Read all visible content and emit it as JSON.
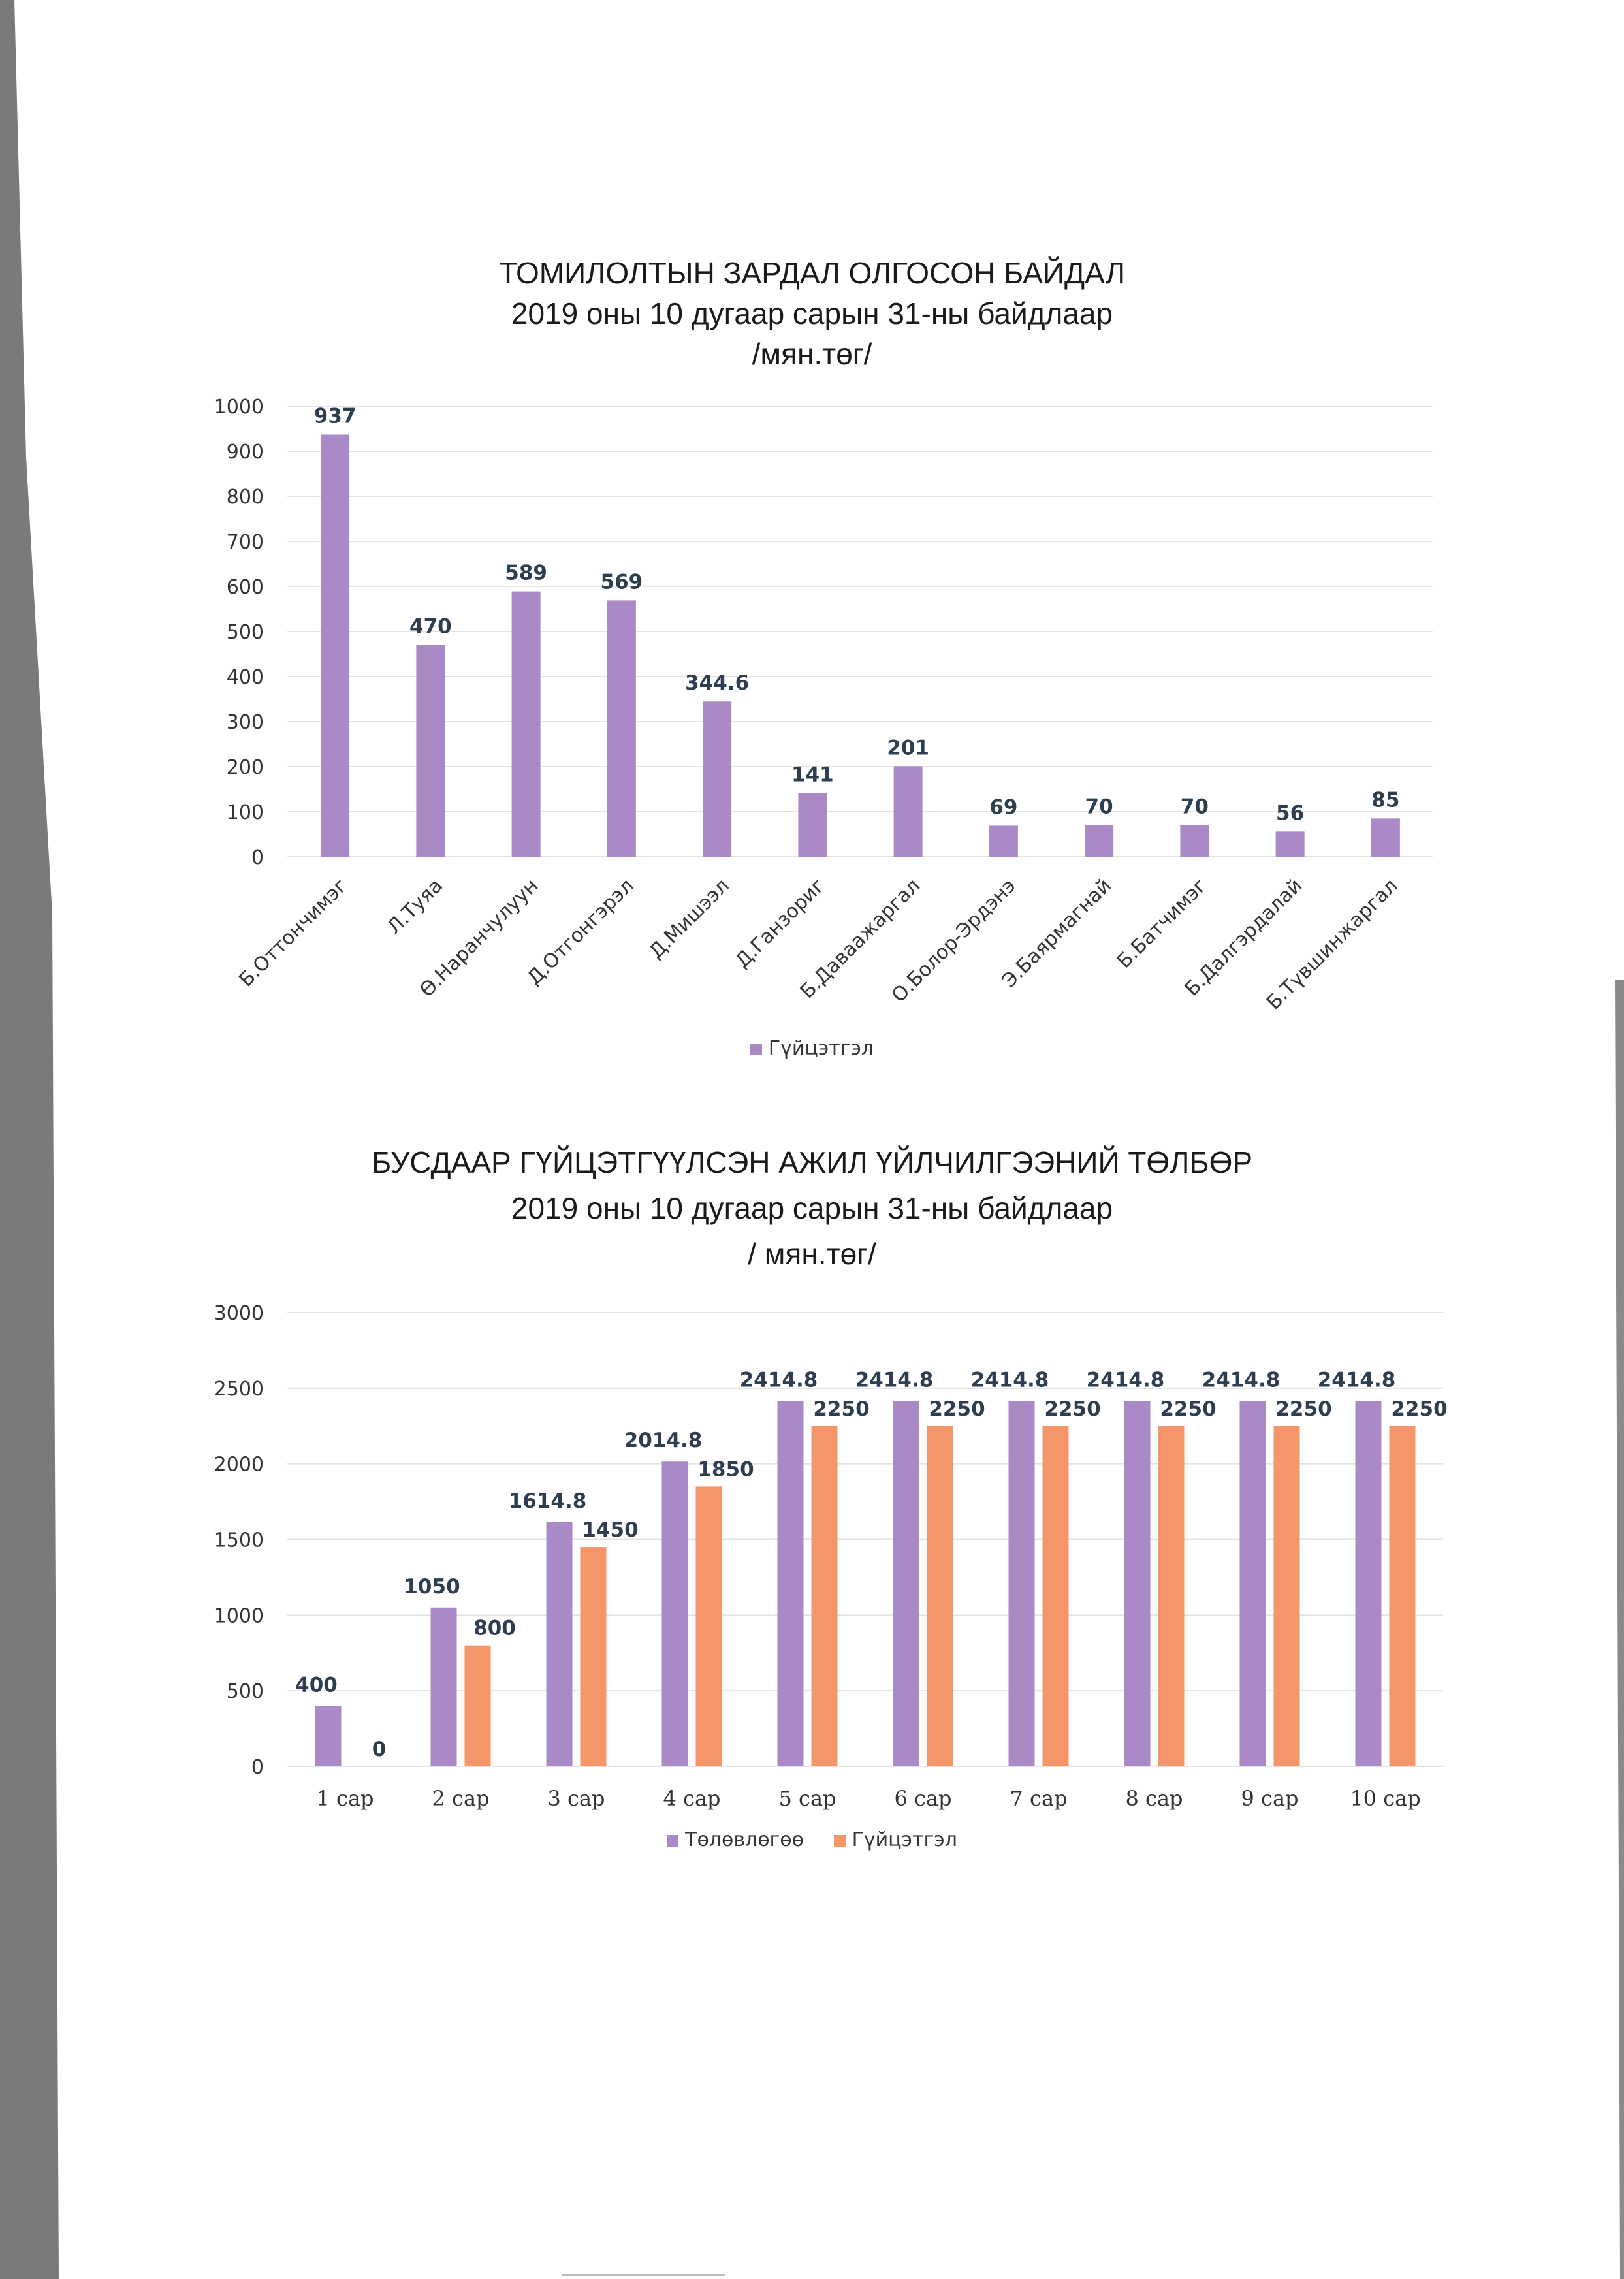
{
  "chart_data": [
    {
      "type": "bar",
      "title": "ТОМИЛОЛТЫН ЗАРДАЛ ОЛГОСОН БАЙДАЛ",
      "subtitle": "2019 оны 10 дугаар сарын 31-ны байдлаар",
      "unit": "/мян.төг/",
      "categories": [
        "Б.Оттончимэг",
        "Л.Туяа",
        "Ө.Наранчулуун",
        "Д.Отгонгэрэл",
        "Д.Мишээл",
        "Д.Ганзориг",
        "Б.Даваажаргал",
        "О.Болор-Эрдэнэ",
        "Э.Баярмагнай",
        "Б.Батчимэг",
        "Б.Далгэрдалай",
        "Б.Түвшинжаргал"
      ],
      "series": [
        {
          "name": "Гүйцэтгэл",
          "values": [
            937,
            470,
            589,
            569,
            344.6,
            141,
            201,
            69,
            70,
            70,
            56,
            85
          ],
          "labels": [
            "937",
            "470",
            "589",
            "569",
            "344.6",
            "141",
            "201",
            "69",
            "70",
            "70",
            "56",
            "85"
          ],
          "color": "#a98ac7"
        }
      ],
      "ylim": [
        0,
        1000
      ],
      "yticks": [
        0,
        100,
        200,
        300,
        400,
        500,
        600,
        700,
        800,
        900,
        1000
      ],
      "grid": true,
      "legend": "bottom"
    },
    {
      "type": "bar",
      "title": "БУСДААР ГҮЙЦЭТГҮҮЛСЭН АЖИЛ ҮЙЛЧИЛГЭЭНИЙ ТӨЛБӨР",
      "subtitle": "2019 оны 10 дугаар сарын 31-ны байдлаар",
      "unit": "/ мян.төг/",
      "categories": [
        "1 сар",
        "2 сар",
        "3 сар",
        "4 сар",
        "5 сар",
        "6 сар",
        "7 сар",
        "8 сар",
        "9 сар",
        "10 сар"
      ],
      "series": [
        {
          "name": "Төлөвлөгөө",
          "values": [
            400,
            1050,
            1614.8,
            2014.8,
            2414.8,
            2414.8,
            2414.8,
            2414.8,
            2414.8,
            2414.8
          ],
          "labels": [
            "400",
            "1050",
            "1614.8",
            "2014.8",
            "2414.8",
            "2414.8",
            "2414.8",
            "2414.8",
            "2414.8",
            "2414.8"
          ],
          "color": "#a98ac7"
        },
        {
          "name": "Гүйцэтгэл",
          "values": [
            0,
            800,
            1450,
            1850,
            2250,
            2250,
            2250,
            2250,
            2250,
            2250
          ],
          "labels": [
            "0",
            "800",
            "1450",
            "1850",
            "2250",
            "2250",
            "2250",
            "2250",
            "2250",
            "2250"
          ],
          "color": "#f5956a"
        }
      ],
      "ylim": [
        0,
        3000
      ],
      "yticks": [
        0,
        500,
        1000,
        1500,
        2000,
        2500,
        3000
      ],
      "grid": true,
      "legend": "bottom"
    }
  ]
}
